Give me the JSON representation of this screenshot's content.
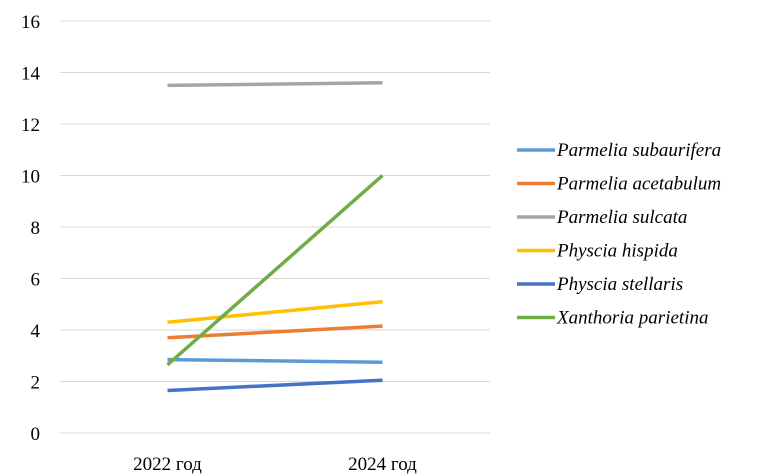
{
  "chart_data": {
    "type": "line",
    "title": "",
    "xlabel": "",
    "ylabel": "",
    "categories": [
      "2022 год",
      "2024 год"
    ],
    "ylim": [
      0,
      16
    ],
    "y_ticks": [
      0,
      2,
      4,
      6,
      8,
      10,
      12,
      14,
      16
    ],
    "grid": true,
    "legend_position": "right",
    "series": [
      {
        "name": "Parmelia subaurifera",
        "color": "#5B9BD5",
        "values": [
          2.85,
          2.75
        ]
      },
      {
        "name": "Parmelia acetabulum",
        "color": "#ED7D31",
        "values": [
          3.7,
          4.15
        ]
      },
      {
        "name": "Parmelia sulcata",
        "color": "#A5A5A5",
        "values": [
          13.5,
          13.6
        ]
      },
      {
        "name": "Physcia hispida",
        "color": "#FFC000",
        "values": [
          4.3,
          5.1
        ]
      },
      {
        "name": "Physcia stellaris",
        "color": "#4472C4",
        "values": [
          1.65,
          2.05
        ]
      },
      {
        "name": "Xanthoria parietina",
        "color": "#70AD47",
        "values": [
          2.65,
          10.0
        ]
      }
    ]
  }
}
